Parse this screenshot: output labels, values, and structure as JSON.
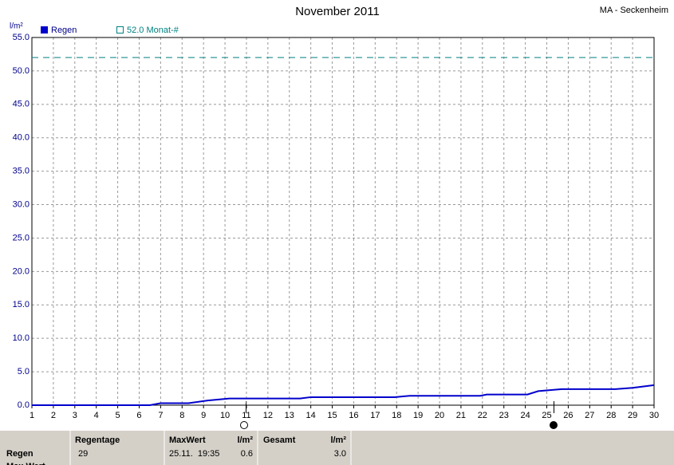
{
  "chart_data": {
    "type": "line",
    "title": "November 2011",
    "subtitle": "MA - Seckenheim",
    "y_label": "l/m²",
    "x": [
      1,
      6.5,
      7,
      8.3,
      9.2,
      10.2,
      13.5,
      14,
      17.9,
      18.6,
      21.9,
      22.2,
      24.1,
      24.6,
      25.7,
      28.2,
      29,
      30
    ],
    "series": [
      {
        "name": "Regen",
        "color": "#0000cc",
        "values": [
          0,
          0,
          0.3,
          0.3,
          0.7,
          1.0,
          1.0,
          1.2,
          1.2,
          1.4,
          1.4,
          1.6,
          1.6,
          2.1,
          2.4,
          2.4,
          2.6,
          3.0
        ]
      }
    ],
    "reference": {
      "label": "52.0 Monat-#",
      "value": 52,
      "color": "#008080"
    },
    "xlim": [
      1,
      30
    ],
    "xticks": [
      1,
      2,
      3,
      4,
      5,
      6,
      7,
      8,
      9,
      10,
      11,
      12,
      13,
      14,
      15,
      16,
      17,
      18,
      19,
      20,
      21,
      22,
      23,
      24,
      25,
      26,
      27,
      28,
      29,
      30
    ],
    "ylim": [
      0,
      55
    ],
    "yticks": [
      {
        "value": 0,
        "label": "0.0"
      },
      {
        "value": 5,
        "label": "5.0"
      },
      {
        "value": 10,
        "label": "10.0"
      },
      {
        "value": 15,
        "label": "15.0"
      },
      {
        "value": 20,
        "label": "20.0"
      },
      {
        "value": 25,
        "label": "25.0"
      },
      {
        "value": 30,
        "label": "30.0"
      },
      {
        "value": 35,
        "label": "35.0"
      },
      {
        "value": 40,
        "label": "40.0"
      },
      {
        "value": 45,
        "label": "45.0"
      },
      {
        "value": 50,
        "label": "50.0"
      },
      {
        "value": 55,
        "label": "55.0"
      }
    ],
    "grid": true
  },
  "table": {
    "headers": [
      "Regentage",
      "MaxWert",
      "l/m²",
      "Gesamt",
      "l/m²"
    ],
    "rows": [
      {
        "label": "Regen",
        "cells": [
          "29",
          "25.11.  19:35",
          "0.6",
          "3.0"
        ]
      },
      {
        "label": "Max Wert",
        "cells": []
      }
    ]
  }
}
